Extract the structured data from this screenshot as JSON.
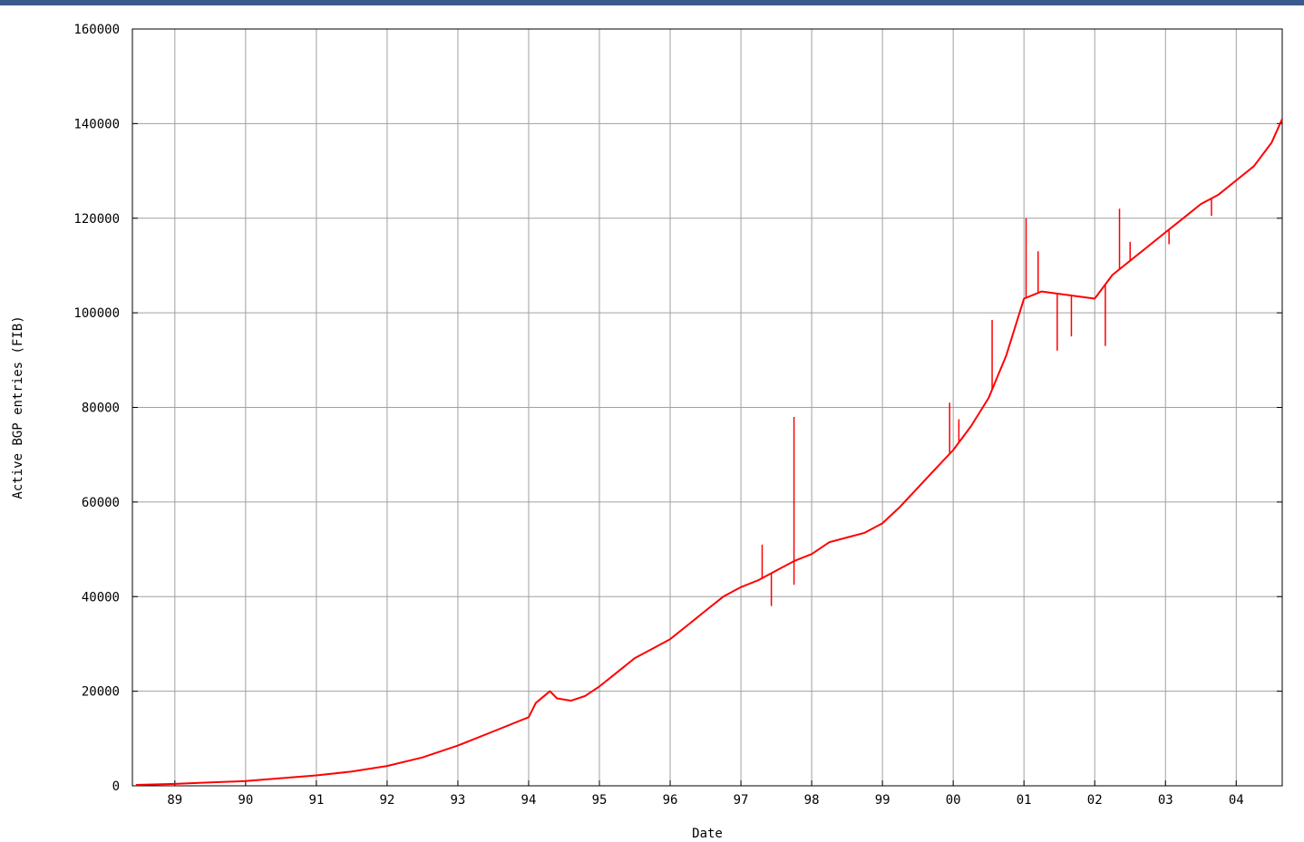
{
  "theme": {
    "band_color": "#3a5a8c",
    "line_color": "#ff0000",
    "grid_color": "#a0a0a0",
    "axis_color": "#000000"
  },
  "chart_data": {
    "type": "line",
    "title": "",
    "xlabel": "Date",
    "ylabel": "Active BGP entries (FIB)",
    "grid": true,
    "xlim": [
      1988.4,
      2004.65
    ],
    "ylim": [
      0,
      160000
    ],
    "x_ticks": [
      {
        "value": 1989,
        "label": "89"
      },
      {
        "value": 1990,
        "label": "90"
      },
      {
        "value": 1991,
        "label": "91"
      },
      {
        "value": 1992,
        "label": "92"
      },
      {
        "value": 1993,
        "label": "93"
      },
      {
        "value": 1994,
        "label": "94"
      },
      {
        "value": 1995,
        "label": "95"
      },
      {
        "value": 1996,
        "label": "96"
      },
      {
        "value": 1997,
        "label": "97"
      },
      {
        "value": 1998,
        "label": "98"
      },
      {
        "value": 1999,
        "label": "99"
      },
      {
        "value": 2000,
        "label": "00"
      },
      {
        "value": 2001,
        "label": "01"
      },
      {
        "value": 2002,
        "label": "02"
      },
      {
        "value": 2003,
        "label": "03"
      },
      {
        "value": 2004,
        "label": "04"
      }
    ],
    "y_ticks": [
      {
        "value": 0,
        "label": "0"
      },
      {
        "value": 20000,
        "label": "20000"
      },
      {
        "value": 40000,
        "label": "40000"
      },
      {
        "value": 60000,
        "label": "60000"
      },
      {
        "value": 80000,
        "label": "80000"
      },
      {
        "value": 100000,
        "label": "100000"
      },
      {
        "value": 120000,
        "label": "120000"
      },
      {
        "value": 140000,
        "label": "140000"
      },
      {
        "value": 160000,
        "label": "160000"
      }
    ],
    "series": [
      {
        "x": [
          1988.45,
          1989.0,
          1989.5,
          1990.0,
          1990.5,
          1991.0,
          1991.5,
          1992.0,
          1992.5,
          1993.0,
          1993.5,
          1994.0,
          1994.1,
          1994.3,
          1994.4,
          1994.6,
          1994.8,
          1995.0,
          1995.25,
          1995.5,
          1995.75,
          1996.0,
          1996.25,
          1996.5,
          1996.75,
          1997.0,
          1997.25,
          1997.5,
          1997.75,
          1998.0,
          1998.25,
          1998.5,
          1998.75,
          1999.0,
          1999.25,
          1999.5,
          1999.75,
          2000.0,
          2000.25,
          2000.5,
          2000.75,
          2001.0,
          2001.25,
          2001.5,
          2001.75,
          2002.0,
          2002.25,
          2002.5,
          2002.75,
          2003.0,
          2003.25,
          2003.5,
          2003.75,
          2004.0,
          2004.25,
          2004.5,
          2004.65
        ],
        "y": [
          200,
          400,
          700,
          1000,
          1600,
          2200,
          3000,
          4200,
          6000,
          8500,
          11500,
          14500,
          17500,
          20000,
          18500,
          18000,
          19000,
          21000,
          24000,
          27000,
          29000,
          31000,
          34000,
          37000,
          40000,
          42000,
          43500,
          45500,
          47500,
          49000,
          51500,
          52500,
          53500,
          55500,
          59000,
          63000,
          67000,
          71000,
          76000,
          82000,
          91000,
          103000,
          104500,
          104000,
          103500,
          103000,
          108000,
          111000,
          114000,
          117000,
          120000,
          123000,
          125000,
          128000,
          131000,
          136000,
          141000
        ]
      }
    ],
    "spikes": [
      {
        "x": 1997.75,
        "y": 78000
      },
      {
        "x": 1997.3,
        "y": 51000
      },
      {
        "x": 1997.43,
        "y": 38000
      },
      {
        "x": 1997.75,
        "y": 42500
      },
      {
        "x": 1999.95,
        "y": 81000
      },
      {
        "x": 2000.08,
        "y": 77500
      },
      {
        "x": 2000.55,
        "y": 98500
      },
      {
        "x": 2001.03,
        "y": 120000
      },
      {
        "x": 2001.2,
        "y": 113000
      },
      {
        "x": 2001.47,
        "y": 92000
      },
      {
        "x": 2001.67,
        "y": 95000
      },
      {
        "x": 2002.15,
        "y": 93000
      },
      {
        "x": 2002.35,
        "y": 122000
      },
      {
        "x": 2002.5,
        "y": 115000
      },
      {
        "x": 2003.05,
        "y": 114500
      },
      {
        "x": 2003.65,
        "y": 120500
      }
    ]
  }
}
